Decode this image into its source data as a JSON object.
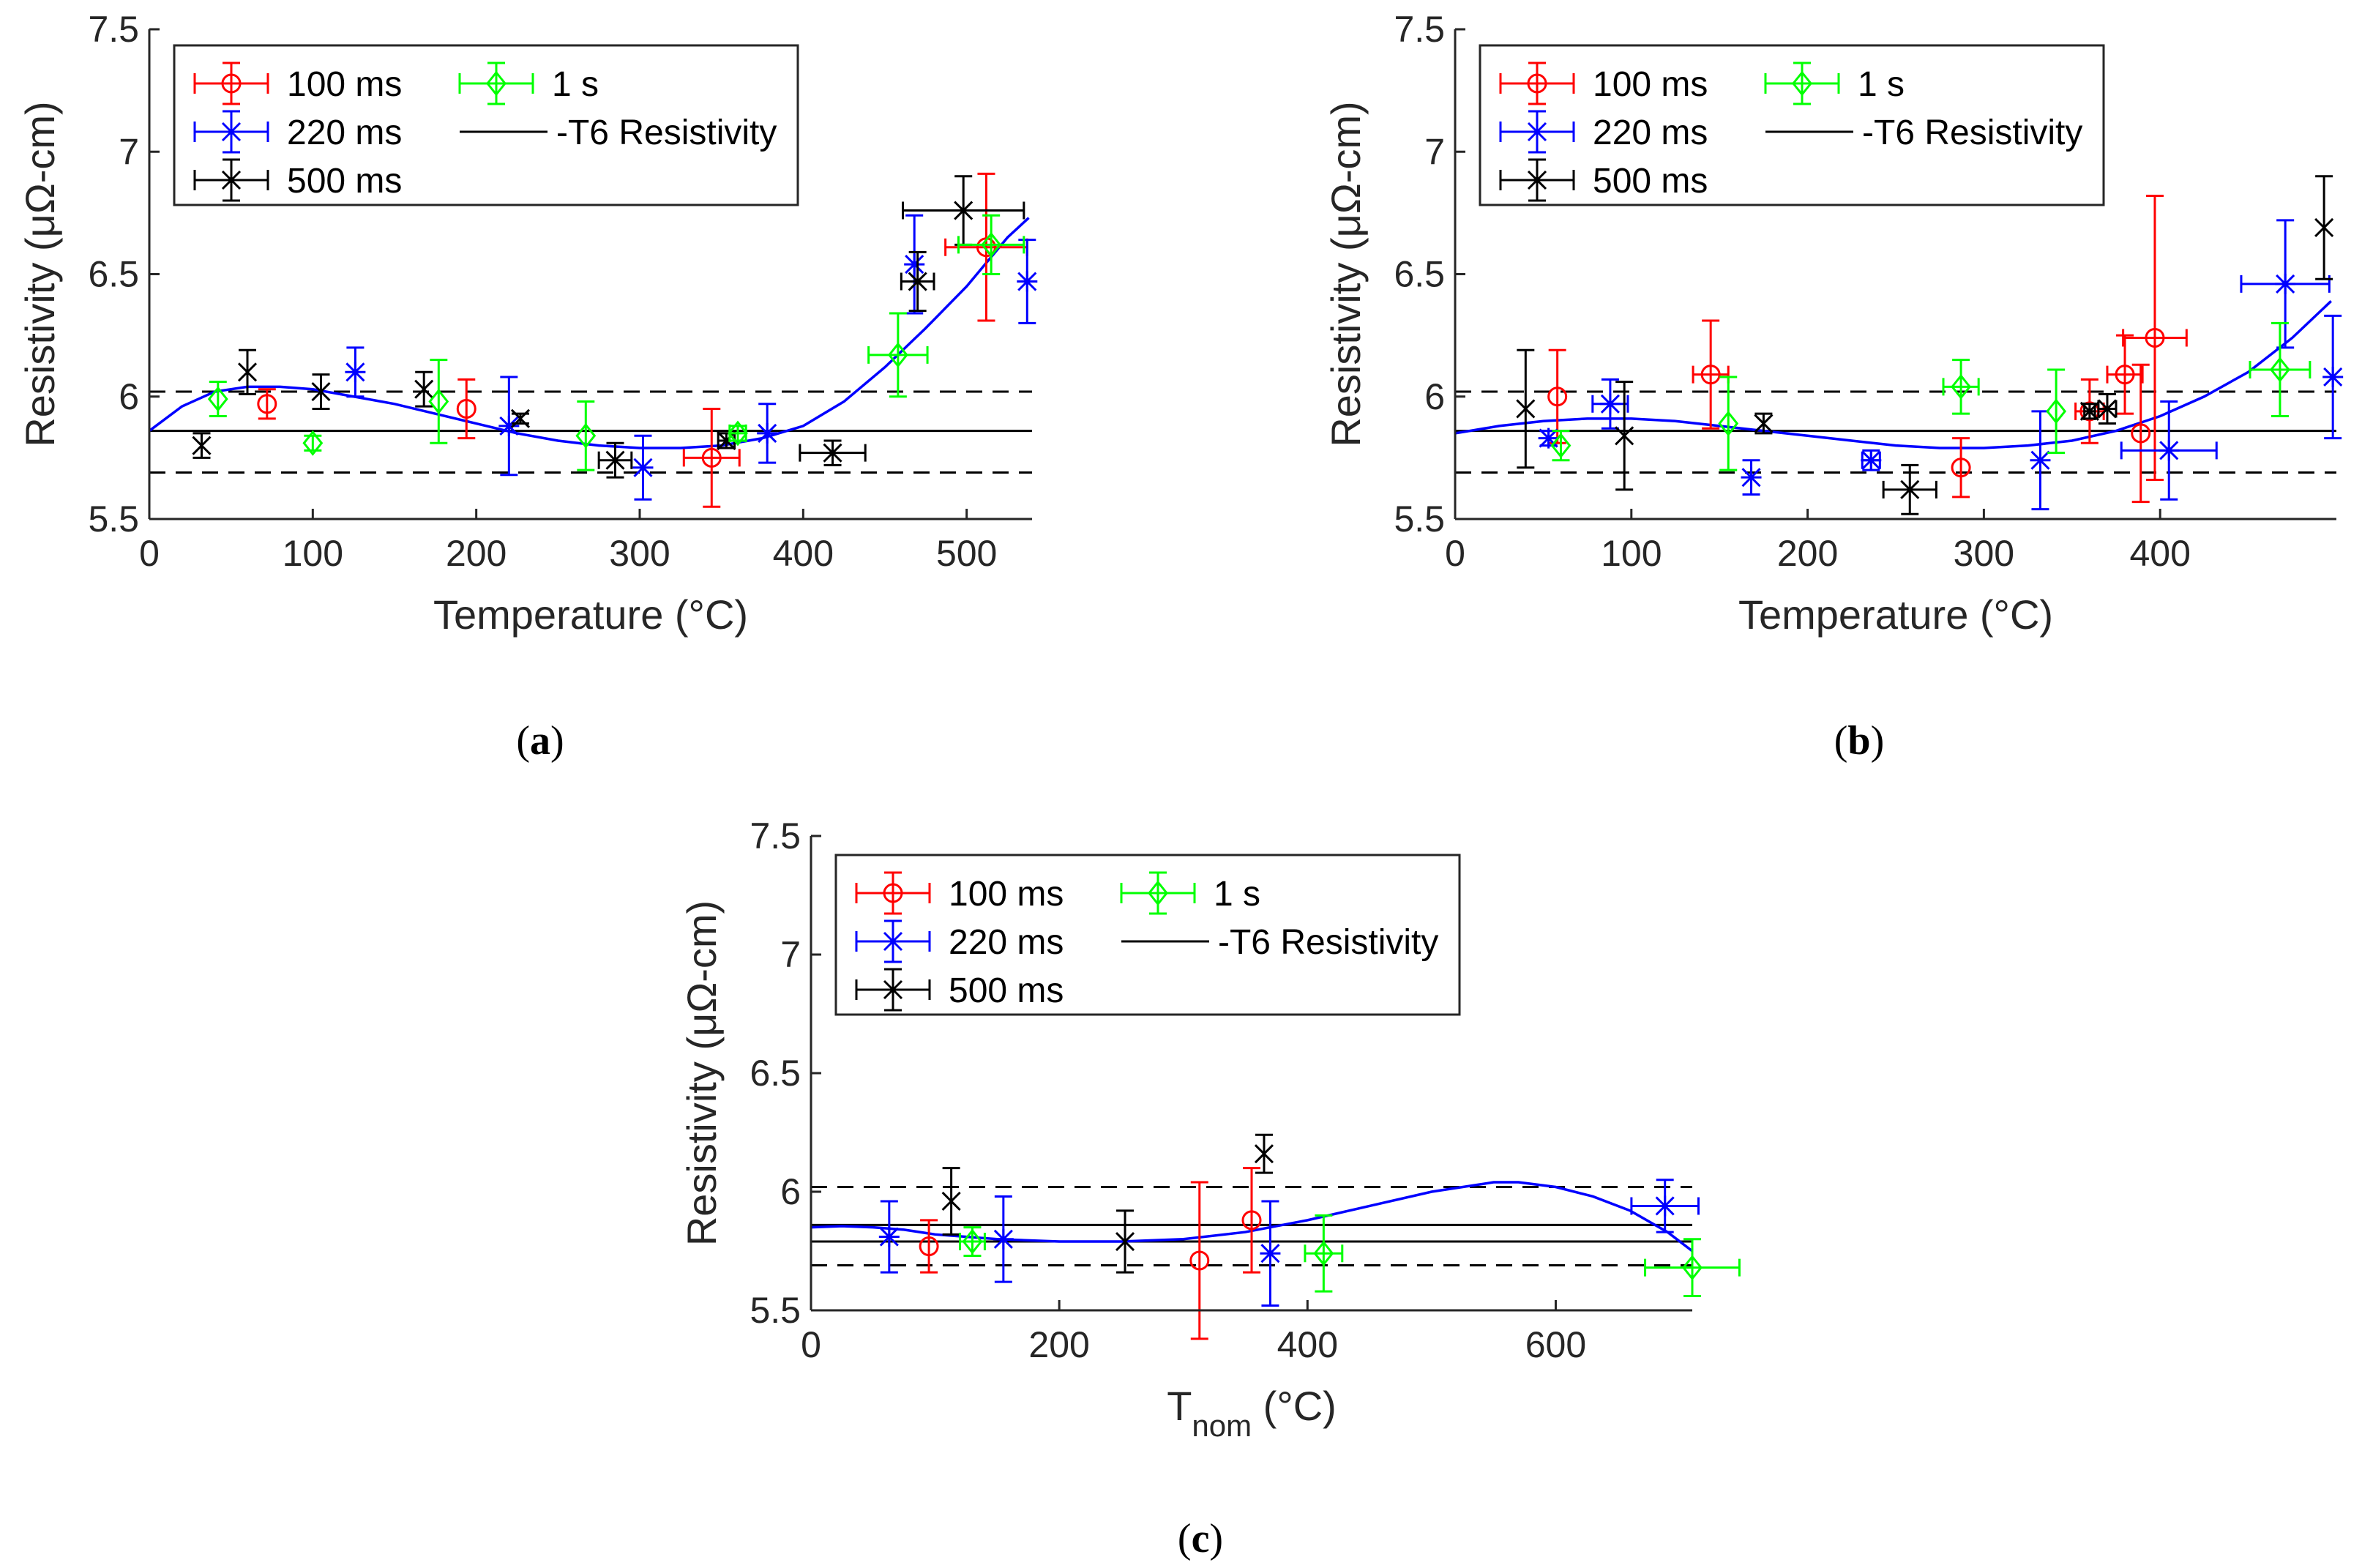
{
  "figure": {
    "panels": [
      "a",
      "b",
      "c"
    ]
  },
  "chart_data": [
    {
      "id": "a",
      "type": "scatter",
      "caption": "a",
      "xlabel": "Temperature (°C)",
      "ylabel": "Resistivity (μΩ-cm)",
      "xlim": [
        0,
        540
      ],
      "ylim": [
        5.5,
        7.5
      ],
      "xticks": [
        "0",
        "100",
        "200",
        "300",
        "400",
        "500"
      ],
      "yticks": [
        "5.5",
        "6",
        "6.5",
        "7",
        "7.5"
      ],
      "reference": {
        "mean": 5.86,
        "upper": 6.02,
        "lower": 5.69
      },
      "legend": [
        "100 ms",
        "1 s",
        "220 ms",
        "-T6 Resistivity",
        "500 ms"
      ],
      "series": [
        {
          "name": "100 ms",
          "color": "#ff0000",
          "marker": "o",
          "points": [
            [
              72,
              5.97,
              0,
              0.06
            ],
            [
              194,
              5.95,
              0,
              0.12
            ],
            [
              344,
              5.75,
              17,
              0.2
            ],
            [
              512,
              6.61,
              25,
              0.3
            ]
          ]
        },
        {
          "name": "220 ms",
          "color": "#0000ff",
          "marker": "*",
          "points": [
            [
              126,
              6.1,
              0,
              0.1
            ],
            [
              220,
              5.88,
              0,
              0.2
            ],
            [
              302,
              5.71,
              0,
              0.13
            ],
            [
              378,
              5.85,
              0,
              0.12
            ],
            [
              468,
              6.54,
              0,
              0.2
            ],
            [
              537,
              6.47,
              0,
              0.17
            ]
          ]
        },
        {
          "name": "500 ms",
          "color": "#000000",
          "marker": "x",
          "points": [
            [
              32,
              5.8,
              0,
              0.05
            ],
            [
              60,
              6.1,
              0,
              0.09
            ],
            [
              105,
              6.02,
              0,
              0.07
            ],
            [
              168,
              6.03,
              0,
              0.07
            ],
            [
              227,
              5.91,
              0,
              0.02
            ],
            [
              285,
              5.74,
              10,
              0.07
            ],
            [
              353,
              5.82,
              5,
              0.03
            ],
            [
              418,
              5.77,
              20,
              0.05
            ],
            [
              470,
              6.47,
              10,
              0.12
            ],
            [
              498,
              6.76,
              37,
              0.14
            ]
          ]
        },
        {
          "name": "1 s",
          "color": "#00ff00",
          "marker": "d",
          "points": [
            [
              42,
              5.99,
              0,
              0.07
            ],
            [
              100,
              5.81,
              0,
              0.03
            ],
            [
              177,
              5.98,
              0,
              0.17
            ],
            [
              267,
              5.84,
              0,
              0.14
            ],
            [
              360,
              5.85,
              5,
              0.03
            ],
            [
              458,
              6.17,
              18,
              0.17
            ],
            [
              515,
              6.62,
              20,
              0.12
            ]
          ]
        }
      ],
      "fit_curve": {
        "color": "#0000ff",
        "x": [
          0,
          20,
          40,
          60,
          80,
          100,
          125,
          150,
          175,
          200,
          225,
          250,
          275,
          300,
          325,
          350,
          375,
          400,
          425,
          450,
          475,
          500,
          525,
          538
        ],
        "y": [
          5.86,
          5.96,
          6.02,
          6.04,
          6.04,
          6.03,
          6.0,
          5.97,
          5.93,
          5.89,
          5.85,
          5.82,
          5.8,
          5.79,
          5.79,
          5.8,
          5.83,
          5.88,
          5.98,
          6.12,
          6.28,
          6.45,
          6.65,
          6.73
        ]
      }
    },
    {
      "id": "b",
      "type": "scatter",
      "caption": "b",
      "xlabel": "Temperature (°C)",
      "ylabel": "Resistivity (μΩ-cm)",
      "xlim": [
        0,
        500
      ],
      "ylim": [
        5.5,
        7.5
      ],
      "xticks": [
        "0",
        "100",
        "200",
        "300",
        "400"
      ],
      "yticks": [
        "5.5",
        "6",
        "6.5",
        "7",
        "7.5"
      ],
      "reference": {
        "mean": 5.86,
        "upper": 6.02,
        "lower": 5.69
      },
      "legend": [
        "100 ms",
        "1 s",
        "220 ms",
        "-T6 Resistivity",
        "500 ms"
      ],
      "series": [
        {
          "name": "100 ms",
          "color": "#ff0000",
          "marker": "o",
          "points": [
            [
              58,
              6.0,
              0,
              0.19
            ],
            [
              145,
              6.09,
              10,
              0.22
            ],
            [
              287,
              5.71,
              0,
              0.12
            ],
            [
              360,
              5.94,
              8,
              0.13
            ],
            [
              380,
              6.09,
              10,
              0.16
            ],
            [
              389,
              5.85,
              0,
              0.28
            ],
            [
              397,
              6.24,
              18,
              0.58
            ]
          ]
        },
        {
          "name": "220 ms",
          "color": "#0000ff",
          "marker": "*",
          "points": [
            [
              53,
              5.83,
              0,
              0.03
            ],
            [
              88,
              5.97,
              10,
              0.1
            ],
            [
              168,
              5.67,
              0,
              0.07
            ],
            [
              236,
              5.74,
              5,
              0.04
            ],
            [
              332,
              5.74,
              0,
              0.2
            ],
            [
              405,
              5.78,
              27,
              0.2
            ],
            [
              471,
              6.46,
              25,
              0.26
            ],
            [
              498,
              6.08,
              0,
              0.25
            ]
          ]
        },
        {
          "name": "500 ms",
          "color": "#000000",
          "marker": "x",
          "points": [
            [
              40,
              5.95,
              0,
              0.24
            ],
            [
              96,
              5.84,
              0,
              0.22
            ],
            [
              175,
              5.89,
              0,
              0.04
            ],
            [
              258,
              5.62,
              15,
              0.1
            ],
            [
              360,
              5.94,
              3,
              0.03
            ],
            [
              370,
              5.95,
              5,
              0.06
            ],
            [
              493,
              6.69,
              0,
              0.21
            ]
          ]
        },
        {
          "name": "1 s",
          "color": "#00ff00",
          "marker": "d",
          "points": [
            [
              60,
              5.8,
              0,
              0.06
            ],
            [
              155,
              5.89,
              0,
              0.19
            ],
            [
              287,
              6.04,
              10,
              0.11
            ],
            [
              341,
              5.94,
              0,
              0.17
            ],
            [
              468,
              6.11,
              17,
              0.19
            ]
          ]
        }
      ],
      "fit_curve": {
        "color": "#0000ff",
        "x": [
          0,
          25,
          50,
          75,
          100,
          125,
          150,
          175,
          200,
          225,
          250,
          275,
          300,
          325,
          350,
          375,
          400,
          425,
          450,
          475,
          497
        ],
        "y": [
          5.85,
          5.88,
          5.9,
          5.91,
          5.91,
          5.9,
          5.88,
          5.86,
          5.84,
          5.82,
          5.8,
          5.79,
          5.79,
          5.8,
          5.82,
          5.86,
          5.92,
          6.0,
          6.1,
          6.24,
          6.39
        ]
      }
    },
    {
      "id": "c",
      "type": "scatter",
      "caption": "c",
      "xlabel_main": "T",
      "xlabel_sub": "nom",
      "xlabel_tail": " (°C)",
      "ylabel": "Resistivity (μΩ-cm)",
      "xlim": [
        0,
        710
      ],
      "ylim": [
        5.5,
        7.5
      ],
      "xticks": [
        "0",
        "200",
        "400",
        "600"
      ],
      "yticks": [
        "5.5",
        "6",
        "6.5",
        "7",
        "7.5"
      ],
      "reference": {
        "mean": 5.86,
        "upper": 6.02,
        "lower": 5.69,
        "second": 5.79
      },
      "legend": [
        "100 ms",
        "1 s",
        "220 ms",
        "-T6 Resistivity",
        "500 ms"
      ],
      "series": [
        {
          "name": "100 ms",
          "color": "#ff0000",
          "marker": "o",
          "points": [
            [
              95,
              5.77,
              0,
              0.11
            ],
            [
              313,
              5.71,
              0,
              0.33
            ],
            [
              355,
              5.88,
              0,
              0.22
            ]
          ]
        },
        {
          "name": "220 ms",
          "color": "#0000ff",
          "marker": "*",
          "points": [
            [
              63,
              5.81,
              0,
              0.15
            ],
            [
              155,
              5.8,
              0,
              0.18
            ],
            [
              370,
              5.74,
              0,
              0.22
            ],
            [
              688,
              5.94,
              27,
              0.11
            ]
          ]
        },
        {
          "name": "500 ms",
          "color": "#000000",
          "marker": "x",
          "points": [
            [
              113,
              5.96,
              0,
              0.14
            ],
            [
              253,
              5.79,
              0,
              0.13
            ],
            [
              365,
              6.16,
              0,
              0.08
            ]
          ]
        },
        {
          "name": "1 s",
          "color": "#00ff00",
          "marker": "d",
          "points": [
            [
              130,
              5.79,
              10,
              0.06
            ],
            [
              413,
              5.74,
              15,
              0.16
            ],
            [
              710,
              5.68,
              38,
              0.12
            ]
          ]
        }
      ],
      "fit_curve": {
        "color": "#0000ff",
        "x": [
          0,
          25,
          50,
          75,
          100,
          150,
          200,
          250,
          300,
          350,
          400,
          450,
          500,
          550,
          570,
          600,
          630,
          660,
          690,
          710
        ],
        "y": [
          5.85,
          5.855,
          5.85,
          5.84,
          5.82,
          5.8,
          5.79,
          5.79,
          5.8,
          5.83,
          5.88,
          5.94,
          6.0,
          6.04,
          6.04,
          6.02,
          5.98,
          5.92,
          5.83,
          5.75
        ]
      }
    }
  ]
}
